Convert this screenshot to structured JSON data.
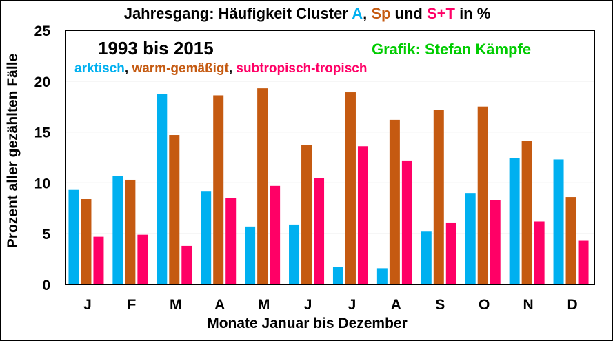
{
  "colors": {
    "arktisch": "#00B0F0",
    "warm": "#C55A11",
    "subtrop": "#FF0066",
    "credit": "#00CC00",
    "axis": "#000000",
    "grid": "#D9D9D9"
  },
  "title": {
    "prefix": "Jahresgang: Häufigkeit Cluster ",
    "a": "A",
    "sep1": ", ",
    "sp": "Sp",
    "und": " und ",
    "st": "S+T",
    "suffix": " in %"
  },
  "period": "1993 bis 2015",
  "credit": "Grafik: Stefan Kämpfe",
  "legend": {
    "arktisch": "arktisch",
    "comma1": ", ",
    "warm": "warm-gemäßigt",
    "comma2": ", ",
    "subtrop": "subtropisch-tropisch"
  },
  "chart_data": {
    "type": "bar",
    "xlabel": "Monate Januar bis Dezember",
    "ylabel": "Prozent aller gezählten Fälle",
    "ylim": [
      0,
      25
    ],
    "yticks": [
      0,
      5,
      10,
      15,
      20,
      25
    ],
    "grid": true,
    "categories": [
      "J",
      "F",
      "M",
      "A",
      "M",
      "J",
      "J",
      "A",
      "S",
      "O",
      "N",
      "D"
    ],
    "series": [
      {
        "name": "arktisch",
        "color": "#00B0F0",
        "values": [
          9.3,
          10.7,
          18.7,
          9.2,
          5.7,
          5.9,
          1.7,
          1.6,
          5.2,
          9.0,
          12.4,
          12.3
        ]
      },
      {
        "name": "warm-gemäßigt",
        "color": "#C55A11",
        "values": [
          8.4,
          10.3,
          14.7,
          18.6,
          19.3,
          13.7,
          18.9,
          16.2,
          17.2,
          17.5,
          14.1,
          8.6
        ]
      },
      {
        "name": "subtropisch-tropisch",
        "color": "#FF0066",
        "values": [
          4.7,
          4.9,
          3.8,
          8.5,
          9.7,
          10.5,
          13.6,
          12.2,
          6.1,
          8.3,
          6.2,
          4.3
        ]
      }
    ]
  }
}
